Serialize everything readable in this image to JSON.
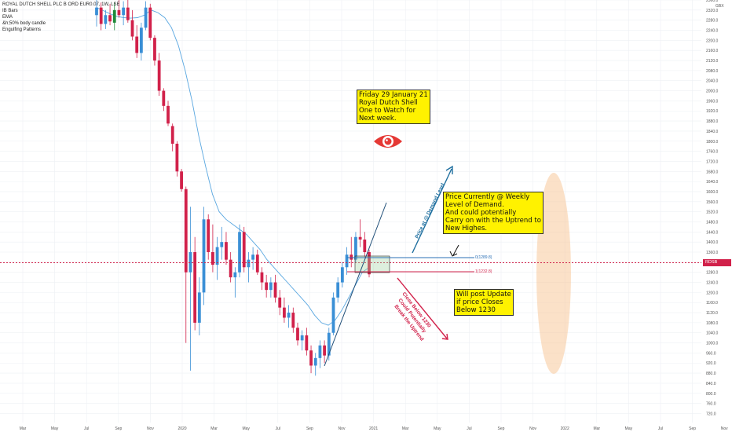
{
  "legend": {
    "title": "ROYAL DUTCH SHELL PLC B ORD EUR0.07, 1W, LSE",
    "items": [
      "IB Bars",
      "EMA",
      "&h;50% body candle",
      "Engulfing Patterns"
    ]
  },
  "currency": "GBX",
  "price_tag": {
    "symbol": "RDSB",
    "value": "1272.2"
  },
  "levels": [
    {
      "label": "0(1289.8)",
      "value": 1289.8,
      "color": "#2a6fb5"
    },
    {
      "label": "1(1232.8)",
      "value": 1232.8,
      "color": "#d1214a"
    }
  ],
  "annotations": {
    "friday_note": "Friday 29 January 21\nRoyal Dutch Shell\nOne to Watch for\nNext week.",
    "demand_note": "Price Currently @ Weekly\nLevel of Demand.\nAnd could potentially\nCarry on with the Uptrend to\nNew Highes.",
    "update_note": "Will post Update\nif price Closes\nBelow 1230",
    "arrow_up_label": "Price at @ Demand Level",
    "arrow_down_label": "Close Below 1230\nCould Potentially\nBreak the Uptrend"
  },
  "colors": {
    "bull": "#3a8fd6",
    "bear": "#d1214a",
    "engulf": "#1f8a3a",
    "ema": "#5aa7e0",
    "ellipse": "#f7c99a",
    "grid": "#eef0f4"
  },
  "chart_data": {
    "type": "candlestick",
    "title": "ROYAL DUTCH SHELL PLC B ORD EUR0.07, 1W, LSE",
    "y_axis": {
      "ticks": [
        720,
        760,
        800,
        840,
        880,
        920,
        960,
        1000,
        1040,
        1080,
        1120,
        1160,
        1200,
        1240,
        1280,
        1320,
        1360,
        1400,
        1440,
        1480,
        1520,
        1560,
        1600,
        1640,
        1680,
        1720,
        1760,
        1800,
        1840,
        1880,
        1920,
        1960,
        2000,
        2040,
        2080,
        2120,
        2160,
        2200,
        2240,
        2280,
        2320,
        2360
      ],
      "range": [
        684,
        2360
      ],
      "unit": "GBX"
    },
    "x_axis": {
      "tick_labels": [
        "Mar",
        "May",
        "Jul",
        "Sep",
        "Nov",
        "2020",
        "Mar",
        "May",
        "Jul",
        "Sep",
        "Nov",
        "2021",
        "Mar",
        "May",
        "Jul",
        "Sep",
        "Nov",
        "2022",
        "Mar",
        "May",
        "Jul",
        "Sep",
        "Nov"
      ]
    },
    "current_price": 1272.2,
    "series": [
      {
        "type": "ema",
        "values": [
          2330,
          2318,
          2305,
          2295,
          2290,
          2288,
          2290,
          2300,
          2320,
          2310,
          2290,
          2250,
          2180,
          2080,
          1960,
          1820,
          1700,
          1590,
          1520,
          1490,
          1470,
          1450,
          1430,
          1400,
          1370,
          1330,
          1300,
          1270,
          1240,
          1210,
          1180,
          1150,
          1110,
          1080,
          1070,
          1090,
          1130,
          1180,
          1230,
          1280,
          1300
        ]
      },
      {
        "type": "candles",
        "fields": [
          "open",
          "high",
          "low",
          "close"
        ],
        "values": [
          [
            2300,
            2360,
            2255,
            2330
          ],
          [
            2330,
            2350,
            2240,
            2265
          ],
          [
            2265,
            2320,
            2245,
            2300
          ],
          [
            2300,
            2345,
            2260,
            2275
          ],
          [
            2270,
            2350,
            2240,
            2320
          ],
          [
            2320,
            2360,
            2290,
            2300
          ],
          [
            2300,
            2355,
            2260,
            2330
          ],
          [
            2330,
            2360,
            2270,
            2280
          ],
          [
            2280,
            2320,
            2200,
            2215
          ],
          [
            2215,
            2260,
            2130,
            2150
          ],
          [
            2150,
            2270,
            2120,
            2250
          ],
          [
            2250,
            2355,
            2240,
            2330
          ],
          [
            2330,
            2345,
            2200,
            2210
          ],
          [
            2210,
            2220,
            2100,
            2120
          ],
          [
            2120,
            2150,
            1980,
            2000
          ],
          [
            2000,
            2010,
            1920,
            1940
          ],
          [
            1940,
            1960,
            1860,
            1870
          ],
          [
            1860,
            1870,
            1760,
            1790
          ],
          [
            1790,
            1800,
            1660,
            1680
          ],
          [
            1680,
            1690,
            1600,
            1610
          ],
          [
            1610,
            1620,
            1000,
            1280
          ],
          [
            1280,
            1540,
            890,
            1360
          ],
          [
            1360,
            1420,
            1050,
            1080
          ],
          [
            1080,
            1260,
            1030,
            1200
          ],
          [
            1200,
            1540,
            1150,
            1490
          ],
          [
            1490,
            1510,
            1330,
            1360
          ],
          [
            1360,
            1470,
            1280,
            1310
          ],
          [
            1310,
            1420,
            1250,
            1380
          ],
          [
            1380,
            1460,
            1330,
            1400
          ],
          [
            1400,
            1440,
            1310,
            1330
          ],
          [
            1330,
            1360,
            1240,
            1260
          ],
          [
            1260,
            1300,
            1180,
            1280
          ],
          [
            1280,
            1470,
            1260,
            1440
          ],
          [
            1440,
            1460,
            1280,
            1300
          ],
          [
            1300,
            1360,
            1240,
            1330
          ],
          [
            1330,
            1380,
            1290,
            1350
          ],
          [
            1350,
            1370,
            1270,
            1280
          ],
          [
            1280,
            1300,
            1210,
            1240
          ],
          [
            1240,
            1270,
            1180,
            1210
          ],
          [
            1210,
            1260,
            1180,
            1240
          ],
          [
            1240,
            1270,
            1160,
            1180
          ],
          [
            1180,
            1210,
            1110,
            1140
          ],
          [
            1140,
            1180,
            1080,
            1100
          ],
          [
            1100,
            1150,
            1060,
            1120
          ],
          [
            1120,
            1140,
            1040,
            1060
          ],
          [
            1060,
            1080,
            990,
            1010
          ],
          [
            1010,
            1050,
            970,
            1030
          ],
          [
            1030,
            1060,
            950,
            970
          ],
          [
            970,
            990,
            880,
            910
          ],
          [
            910,
            960,
            870,
            940
          ],
          [
            940,
            1010,
            900,
            990
          ],
          [
            990,
            1010,
            920,
            950
          ],
          [
            950,
            1060,
            930,
            1040
          ],
          [
            1040,
            1200,
            1030,
            1180
          ],
          [
            1180,
            1260,
            1160,
            1240
          ],
          [
            1240,
            1320,
            1220,
            1300
          ],
          [
            1300,
            1380,
            1270,
            1350
          ],
          [
            1350,
            1420,
            1300,
            1330
          ],
          [
            1330,
            1440,
            1320,
            1420
          ],
          [
            1420,
            1490,
            1380,
            1410
          ],
          [
            1410,
            1440,
            1340,
            1360
          ],
          [
            1360,
            1370,
            1260,
            1272
          ]
        ]
      }
    ]
  }
}
